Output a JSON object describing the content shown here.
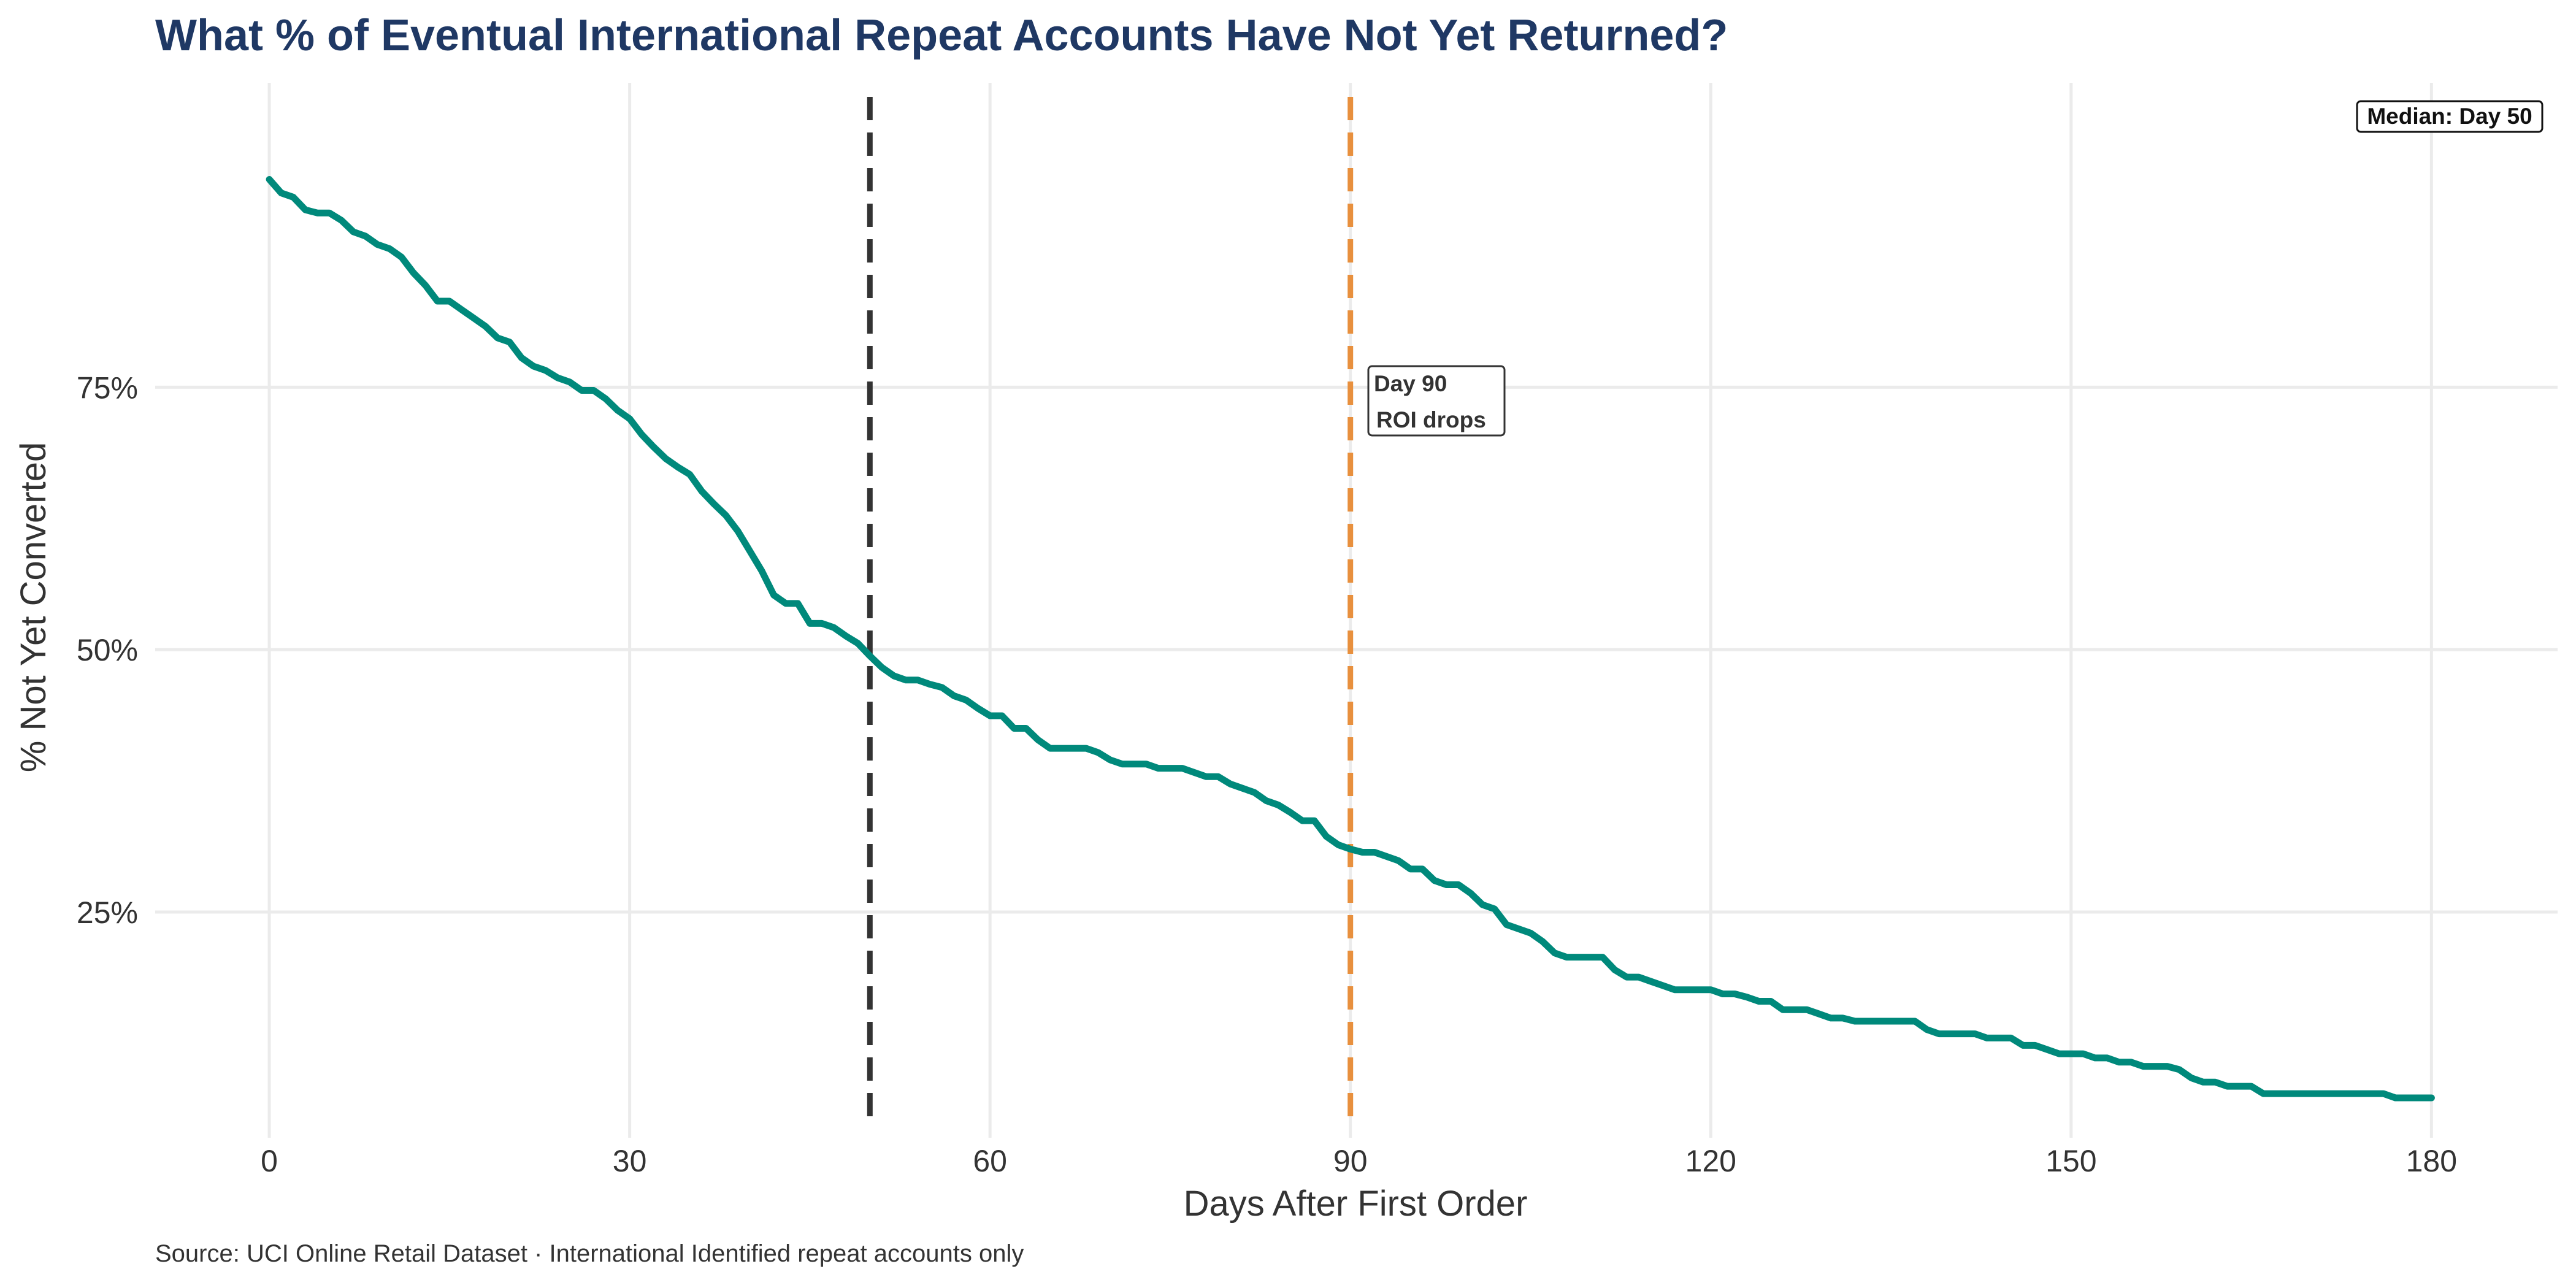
{
  "chart_data": {
    "type": "line",
    "title": "What % of Eventual International Repeat Accounts Have Not Yet Returned?",
    "xlabel": "Days After First Order",
    "ylabel": "% Not Yet Converted",
    "caption": "Source: UCI Online Retail Dataset · International Identified repeat accounts only",
    "xlim": [
      -9.5,
      190.5
    ],
    "ylim": [
      3.5,
      104
    ],
    "x_ticks": [
      0,
      30,
      60,
      90,
      120,
      150,
      180
    ],
    "y_ticks": [
      25,
      50,
      75
    ],
    "y_tick_labels": [
      "25%",
      "50%",
      "75%"
    ],
    "grid": true,
    "series": [
      {
        "color": "#00897b",
        "x": [
          0,
          1,
          2,
          3,
          4,
          5,
          6,
          7,
          8,
          9,
          10,
          11,
          12,
          13,
          14,
          15,
          16,
          17,
          18,
          19,
          20,
          21,
          22,
          23,
          24,
          25,
          26,
          27,
          28,
          29,
          30,
          31,
          32,
          33,
          34,
          35,
          36,
          37,
          38,
          39,
          40,
          41,
          42,
          43,
          44,
          45,
          46,
          47,
          48,
          49,
          50,
          51,
          52,
          53,
          54,
          55,
          56,
          57,
          58,
          59,
          60,
          61,
          62,
          63,
          64,
          65,
          66,
          67,
          68,
          69,
          70,
          71,
          72,
          73,
          74,
          75,
          76,
          77,
          78,
          79,
          80,
          81,
          82,
          83,
          84,
          85,
          86,
          87,
          88,
          89,
          90,
          91,
          92,
          93,
          94,
          95,
          96,
          97,
          98,
          99,
          100,
          101,
          102,
          103,
          104,
          105,
          106,
          107,
          108,
          109,
          110,
          111,
          112,
          113,
          114,
          115,
          116,
          117,
          118,
          119,
          120,
          121,
          122,
          123,
          124,
          125,
          126,
          127,
          128,
          129,
          130,
          131,
          132,
          133,
          134,
          135,
          136,
          137,
          138,
          139,
          140,
          141,
          142,
          143,
          144,
          145,
          146,
          147,
          148,
          149,
          150,
          151,
          152,
          153,
          154,
          155,
          156,
          157,
          158,
          159,
          160,
          161,
          162,
          163,
          164,
          165,
          166,
          167,
          168,
          169,
          170,
          171,
          172,
          173,
          174,
          175,
          176,
          177,
          178,
          179,
          180
        ],
        "y": [
          94.8,
          93.5,
          93.1,
          91.9,
          91.6,
          91.6,
          90.9,
          89.8,
          89.4,
          88.6,
          88.2,
          87.4,
          85.9,
          84.7,
          83.2,
          83.2,
          82.4,
          81.6,
          80.8,
          79.7,
          79.3,
          77.8,
          77.0,
          76.6,
          75.9,
          75.5,
          74.7,
          74.7,
          73.9,
          72.8,
          72.0,
          70.5,
          69.3,
          68.2,
          67.4,
          66.7,
          65.1,
          63.9,
          62.8,
          61.3,
          59.4,
          57.5,
          55.2,
          54.4,
          54.4,
          52.5,
          52.5,
          52.1,
          51.3,
          50.6,
          49.4,
          48.3,
          47.5,
          47.1,
          47.1,
          46.7,
          46.4,
          45.6,
          45.2,
          44.4,
          43.7,
          43.7,
          42.5,
          42.5,
          41.4,
          40.6,
          40.6,
          40.6,
          40.6,
          40.2,
          39.5,
          39.1,
          39.1,
          39.1,
          38.7,
          38.7,
          38.7,
          38.3,
          37.9,
          37.9,
          37.2,
          36.8,
          36.4,
          35.6,
          35.2,
          34.5,
          33.7,
          33.7,
          32.2,
          31.4,
          31.0,
          30.7,
          30.7,
          30.3,
          29.9,
          29.1,
          29.1,
          28.0,
          27.6,
          27.6,
          26.8,
          25.7,
          25.3,
          23.8,
          23.4,
          23.0,
          22.2,
          21.1,
          20.7,
          20.7,
          20.7,
          20.7,
          19.5,
          18.8,
          18.8,
          18.4,
          18.0,
          17.6,
          17.6,
          17.6,
          17.6,
          17.2,
          17.2,
          16.9,
          16.5,
          16.5,
          15.7,
          15.7,
          15.7,
          15.3,
          14.9,
          14.9,
          14.6,
          14.6,
          14.6,
          14.6,
          14.6,
          14.6,
          13.8,
          13.4,
          13.4,
          13.4,
          13.4,
          13.0,
          13.0,
          13.0,
          12.3,
          12.3,
          11.9,
          11.5,
          11.5,
          11.5,
          11.1,
          11.1,
          10.7,
          10.7,
          10.3,
          10.3,
          10.3,
          10.0,
          9.2,
          8.8,
          8.8,
          8.4,
          8.4,
          8.4,
          7.7,
          7.7,
          7.7,
          7.7,
          7.7,
          7.7,
          7.7,
          7.7,
          7.7,
          7.7,
          7.7,
          7.3,
          7.3,
          7.3,
          7.3
        ]
      }
    ],
    "reference_lines": [
      {
        "x": 50,
        "color": "#333333",
        "style": "dashed"
      },
      {
        "x": 90,
        "color": "#e8903e",
        "style": "dashed"
      }
    ],
    "annotations": [
      {
        "label": "Median: Day 50",
        "position": "top-right"
      },
      {
        "line1": "Day 90",
        "line2": "ROI drops",
        "x": 90
      }
    ]
  }
}
